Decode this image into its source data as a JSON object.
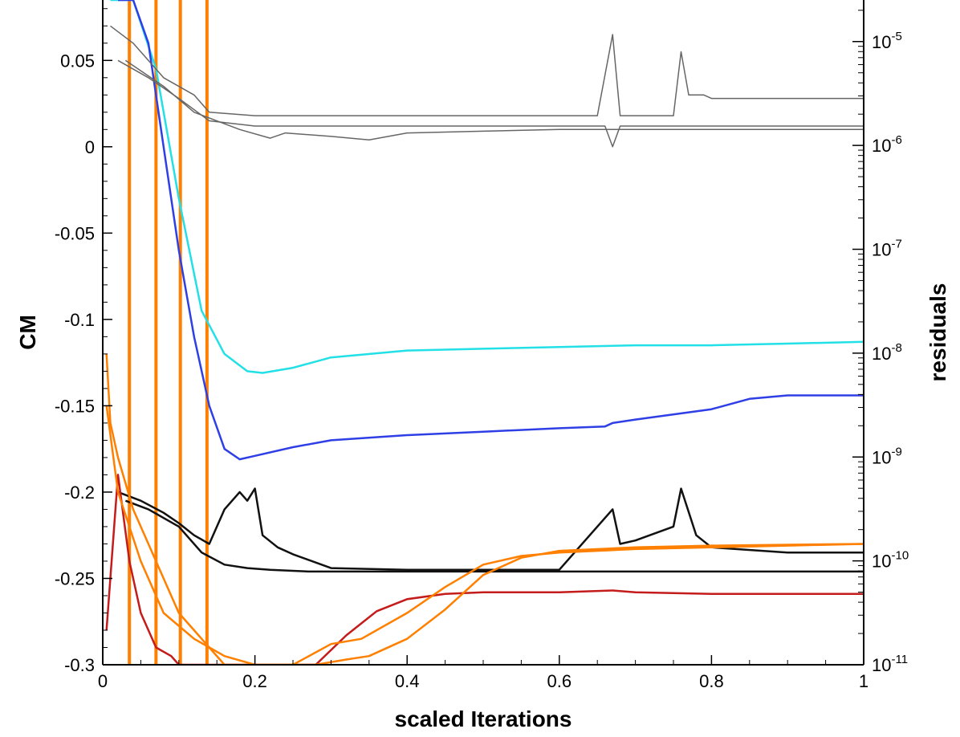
{
  "chart_data": {
    "type": "line",
    "xlabel": "scaled Iterations",
    "ylabel": "CM",
    "y2label": "residuals",
    "xlim": [
      0,
      1
    ],
    "ylim": [
      -0.3,
      0.085
    ],
    "y2lim_log10": [
      -11,
      -4.6
    ],
    "y2scale": "log",
    "grid": false,
    "legend": "none",
    "x_ticks": [
      "0",
      "0.2",
      "0.4",
      "0.6",
      "0.8",
      "1"
    ],
    "x_tick_values": [
      0,
      0.2,
      0.4,
      0.6,
      0.8,
      1
    ],
    "y_ticks": [
      "0.05",
      "0",
      "-0.05",
      "-0.1",
      "-0.15",
      "-0.2",
      "-0.25",
      "-0.3"
    ],
    "y_tick_values": [
      0.05,
      0,
      -0.05,
      -0.1,
      -0.15,
      -0.2,
      -0.25,
      -0.3
    ],
    "y2_ticks": [
      {
        "base": "10",
        "exp": "-5",
        "value": -5
      },
      {
        "base": "10",
        "exp": "-6",
        "value": -6
      },
      {
        "base": "10",
        "exp": "-7",
        "value": -7
      },
      {
        "base": "10",
        "exp": "-8",
        "value": -8
      },
      {
        "base": "10",
        "exp": "-9",
        "value": -9
      },
      {
        "base": "10",
        "exp": "-10",
        "value": -10
      },
      {
        "base": "10",
        "exp": "-11",
        "value": -11
      }
    ],
    "series": [
      {
        "color": "#22e0e6",
        "axis": "left",
        "x": [
          0.01,
          0.04,
          0.07,
          0.1,
          0.13,
          0.16,
          0.19,
          0.21,
          0.25,
          0.3,
          0.4,
          0.5,
          0.6,
          0.7,
          0.8,
          0.9,
          1.0
        ],
        "y": [
          0.085,
          0.085,
          0.045,
          -0.03,
          -0.095,
          -0.12,
          -0.13,
          -0.131,
          -0.128,
          -0.122,
          -0.118,
          -0.117,
          -0.116,
          -0.115,
          -0.115,
          -0.114,
          -0.113
        ]
      },
      {
        "color": "#2f3fe6",
        "axis": "left",
        "x": [
          0.02,
          0.04,
          0.06,
          0.08,
          0.1,
          0.12,
          0.14,
          0.16,
          0.18,
          0.2,
          0.25,
          0.3,
          0.4,
          0.5,
          0.6,
          0.66,
          0.67,
          0.7,
          0.8,
          0.85,
          0.9,
          1.0
        ],
        "y": [
          0.085,
          0.085,
          0.06,
          0.0,
          -0.06,
          -0.11,
          -0.15,
          -0.175,
          -0.181,
          -0.179,
          -0.174,
          -0.17,
          -0.167,
          -0.165,
          -0.163,
          -0.162,
          -0.16,
          -0.158,
          -0.152,
          -0.146,
          -0.144,
          -0.144
        ]
      },
      {
        "color": "#111111",
        "axis": "left",
        "x": [
          0.03,
          0.06,
          0.1,
          0.13,
          0.16,
          0.19,
          0.22,
          0.27,
          0.35,
          0.5,
          0.7,
          0.85,
          1.0
        ],
        "y": [
          -0.205,
          -0.21,
          -0.22,
          -0.235,
          -0.242,
          -0.244,
          -0.245,
          -0.246,
          -0.246,
          -0.246,
          -0.246,
          -0.246,
          -0.246
        ]
      },
      {
        "color": "#111111",
        "axis": "left",
        "x": [
          0.02,
          0.05,
          0.08,
          0.1,
          0.12,
          0.14,
          0.16,
          0.18,
          0.19,
          0.2,
          0.21,
          0.23,
          0.25,
          0.3,
          0.4,
          0.6,
          0.67,
          0.68,
          0.7,
          0.75,
          0.76,
          0.78,
          0.8,
          0.9,
          1.0
        ],
        "y": [
          -0.2,
          -0.205,
          -0.212,
          -0.218,
          -0.225,
          -0.23,
          -0.21,
          -0.2,
          -0.205,
          -0.198,
          -0.225,
          -0.232,
          -0.236,
          -0.244,
          -0.245,
          -0.245,
          -0.21,
          -0.23,
          -0.228,
          -0.22,
          -0.198,
          -0.225,
          -0.232,
          -0.235,
          -0.235
        ]
      },
      {
        "color": "#666666",
        "axis": "left",
        "x": [
          0.01,
          0.04,
          0.08,
          0.12,
          0.14,
          0.2,
          0.3,
          0.5,
          0.65,
          0.67,
          0.68,
          0.75,
          0.76,
          0.77,
          0.79,
          0.8,
          0.9,
          1.0
        ],
        "y": [
          0.07,
          0.06,
          0.04,
          0.03,
          0.02,
          0.018,
          0.018,
          0.018,
          0.018,
          0.065,
          0.018,
          0.018,
          0.055,
          0.03,
          0.03,
          0.028,
          0.028,
          0.028
        ]
      },
      {
        "color": "#666666",
        "axis": "left",
        "x": [
          0.02,
          0.06,
          0.1,
          0.14,
          0.2,
          0.3,
          0.5,
          0.66,
          0.67,
          0.68,
          0.8,
          1.0
        ],
        "y": [
          0.05,
          0.04,
          0.028,
          0.015,
          0.012,
          0.012,
          0.012,
          0.012,
          0.0,
          0.012,
          0.012,
          0.012
        ]
      },
      {
        "color": "#666666",
        "axis": "left",
        "x": [
          0.03,
          0.08,
          0.12,
          0.18,
          0.22,
          0.24,
          0.3,
          0.35,
          0.4,
          0.5,
          0.6,
          0.8,
          1.0
        ],
        "y": [
          0.05,
          0.035,
          0.02,
          0.01,
          0.005,
          0.008,
          0.006,
          0.004,
          0.008,
          0.009,
          0.01,
          0.01,
          0.01
        ]
      },
      {
        "color": "#c41b1b",
        "axis": "left",
        "x": [
          0.005,
          0.02,
          0.035,
          0.05,
          0.07,
          0.09,
          0.1,
          0.11,
          0.12,
          0.14,
          0.16,
          0.28,
          0.32,
          0.36,
          0.4,
          0.45,
          0.5,
          0.55,
          0.6,
          0.67,
          0.7,
          0.8,
          0.9,
          1.0
        ],
        "y": [
          -0.28,
          -0.19,
          -0.24,
          -0.27,
          -0.29,
          -0.295,
          -0.3,
          -0.3,
          -0.3,
          -0.3,
          -0.3,
          -0.3,
          -0.283,
          -0.269,
          -0.262,
          -0.259,
          -0.258,
          -0.258,
          -0.258,
          -0.257,
          -0.258,
          -0.259,
          -0.259,
          -0.259
        ]
      },
      {
        "color": "#ff8000",
        "axis": "left",
        "x": [
          0.005,
          0.01,
          0.02,
          0.04,
          0.06,
          0.08,
          0.1,
          0.12,
          0.14,
          0.16,
          0.17,
          0.25,
          0.3,
          0.34,
          0.4,
          0.45,
          0.5,
          0.55,
          0.6,
          0.7,
          0.8,
          0.9,
          1.0
        ],
        "y": [
          -0.12,
          -0.16,
          -0.18,
          -0.21,
          -0.23,
          -0.25,
          -0.27,
          -0.28,
          -0.29,
          -0.3,
          -0.3,
          -0.3,
          -0.288,
          -0.285,
          -0.27,
          -0.255,
          -0.242,
          -0.237,
          -0.235,
          -0.233,
          -0.232,
          -0.231,
          -0.23
        ]
      },
      {
        "color": "#ff8000",
        "axis": "left",
        "x": [
          0.005,
          0.02,
          0.05,
          0.08,
          0.12,
          0.16,
          0.2,
          0.24,
          0.28,
          0.32,
          0.35,
          0.4,
          0.45,
          0.5,
          0.55,
          0.6,
          0.7,
          0.8,
          1.0
        ],
        "y": [
          -0.15,
          -0.2,
          -0.24,
          -0.27,
          -0.285,
          -0.295,
          -0.3,
          -0.3,
          -0.3,
          -0.297,
          -0.295,
          -0.285,
          -0.268,
          -0.248,
          -0.238,
          -0.234,
          -0.232,
          -0.231,
          -0.23
        ]
      }
    ],
    "spikes": {
      "color": "#ff8000",
      "x": [
        0.035,
        0.07,
        0.102,
        0.137
      ],
      "y_from": -0.3,
      "y_to": 0.085
    }
  }
}
